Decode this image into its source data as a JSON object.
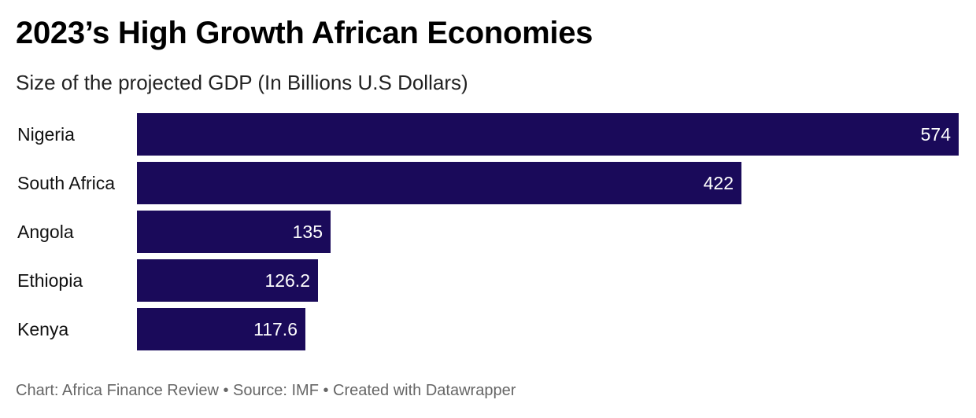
{
  "header": {
    "title": "2023’s High Growth African Economies",
    "subtitle": "Size of the projected GDP (In Billions U.S Dollars)"
  },
  "footer": {
    "text": "Chart: Africa Finance Review • Source: IMF • Created with Datawrapper"
  },
  "colors": {
    "bar": "#1a0a5a",
    "value_label": "#ffffff"
  },
  "chart_data": {
    "type": "bar",
    "orientation": "horizontal",
    "title": "2023’s High Growth African Economies",
    "subtitle": "Size of the projected GDP (In Billions U.S Dollars)",
    "categories": [
      "Nigeria",
      "South Africa",
      "Angola",
      "Ethiopia",
      "Kenya"
    ],
    "values": [
      574,
      422,
      135,
      126.2,
      117.6
    ],
    "value_labels": [
      "574",
      "422",
      "135",
      "126.2",
      "117.6"
    ],
    "xlim": [
      0,
      574
    ],
    "grid": false,
    "legend": "none"
  }
}
